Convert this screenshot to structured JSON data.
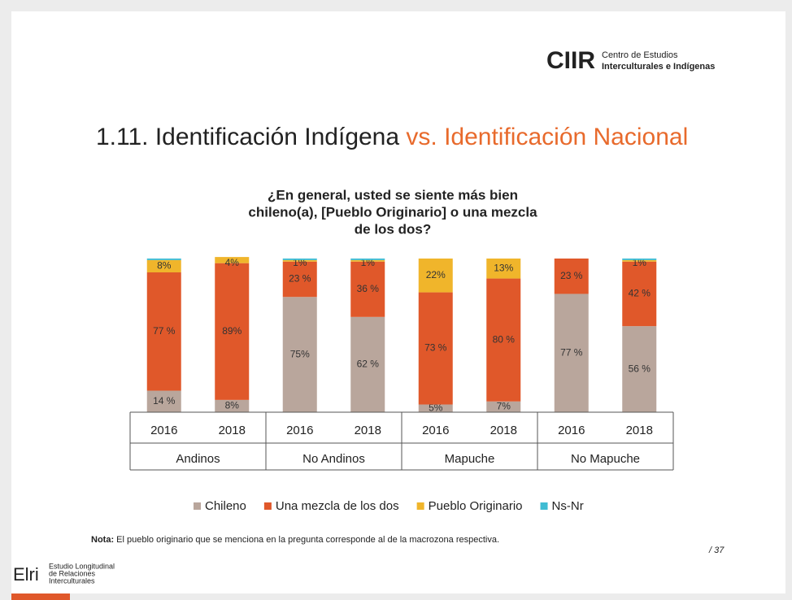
{
  "header": {
    "logo": "CIIR",
    "logo_line1": "Centro de Estudios",
    "logo_line2": "Interculturales e Indígenas"
  },
  "slide_title": {
    "part1": "1.11. Identificación Indígena",
    "part2": "vs. Identificación Nacional"
  },
  "chart_data": {
    "type": "bar",
    "stacked": true,
    "title": [
      "¿En general, usted se siente más bien",
      "chileno(a), [Pueblo Originario] o una mezcla",
      "de los dos?"
    ],
    "categories": [
      "2016",
      "2018",
      "2016",
      "2018",
      "2016",
      "2018",
      "2016",
      "2018"
    ],
    "groups": [
      "Andinos",
      "No Andinos",
      "Mapuche",
      "No Mapuche"
    ],
    "ylim": [
      0,
      100
    ],
    "series": [
      {
        "name": "Chileno",
        "color": "#b9a69c",
        "values": [
          14,
          8,
          75,
          62,
          5,
          7,
          77,
          56
        ],
        "value_labels": [
          "14 %",
          "8%",
          "75%",
          "62 %",
          "5%",
          "7%",
          "77 %",
          "56 %"
        ]
      },
      {
        "name": "Una mezcla de los dos",
        "color": "#e0582a",
        "values": [
          77,
          89,
          23,
          36,
          73,
          80,
          23,
          42
        ],
        "value_labels": [
          "77 %",
          "89%",
          "23 %",
          "36 %",
          "73 %",
          "80 %",
          "23 %",
          "42 %"
        ]
      },
      {
        "name": "Pueblo Originario",
        "color": "#f0b52b",
        "values": [
          8,
          4,
          1,
          1,
          22,
          13,
          0,
          1
        ],
        "value_labels": [
          "8%",
          "4%",
          "1%",
          "1%",
          "22%",
          "13%",
          null,
          "1%"
        ]
      },
      {
        "name": "Ns-Nr",
        "color": "#3fbcd3",
        "values": [
          1,
          0,
          1,
          1,
          0,
          0,
          0,
          1
        ]
      }
    ]
  },
  "note": {
    "label": "Nota:",
    "text": "El pueblo originario que se menciona en la pregunta corresponde al de la macrozona respectiva."
  },
  "page_number": "/ 37",
  "footer": {
    "logo": "Elri",
    "line1": "Estudio Longitudinal",
    "line2": "de Relaciones",
    "line3": "Interculturales"
  }
}
